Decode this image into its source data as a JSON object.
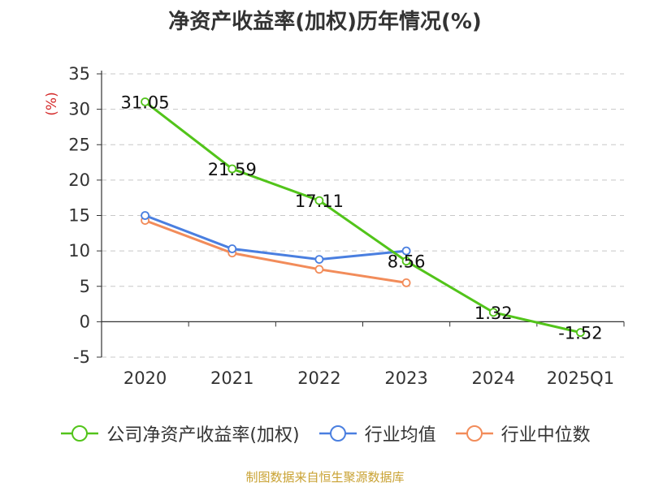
{
  "title": "净资产收益率(加权)历年情况(%)",
  "source": "制图数据来自恒生聚源数据库",
  "chart_data": {
    "type": "line",
    "title": "净资产收益率(加权)历年情况(%)",
    "ylabel": "(%)",
    "categories": [
      "2020",
      "2021",
      "2022",
      "2023",
      "2024",
      "2025Q1"
    ],
    "ylim": [
      -5,
      35
    ],
    "yticks": [
      "35",
      "30",
      "25",
      "20",
      "15",
      "10",
      "5",
      "0",
      "-5"
    ],
    "grid": true,
    "legend_position": "bottom",
    "series": [
      {
        "name": "公司净资产收益率(加权)",
        "color": "#52c41a",
        "values": [
          31.05,
          21.59,
          17.11,
          8.56,
          1.32,
          -1.52
        ],
        "labels": [
          "31.05",
          "21.59",
          "17.11",
          "8.56",
          "1.32",
          "-1.52"
        ]
      },
      {
        "name": "行业均值",
        "color": "#4a7fe0",
        "values": [
          15.0,
          10.3,
          8.8,
          10.0,
          null,
          null
        ]
      },
      {
        "name": "行业中位数",
        "color": "#f28c5a",
        "values": [
          14.3,
          9.7,
          7.4,
          5.5,
          null,
          null
        ]
      }
    ]
  }
}
